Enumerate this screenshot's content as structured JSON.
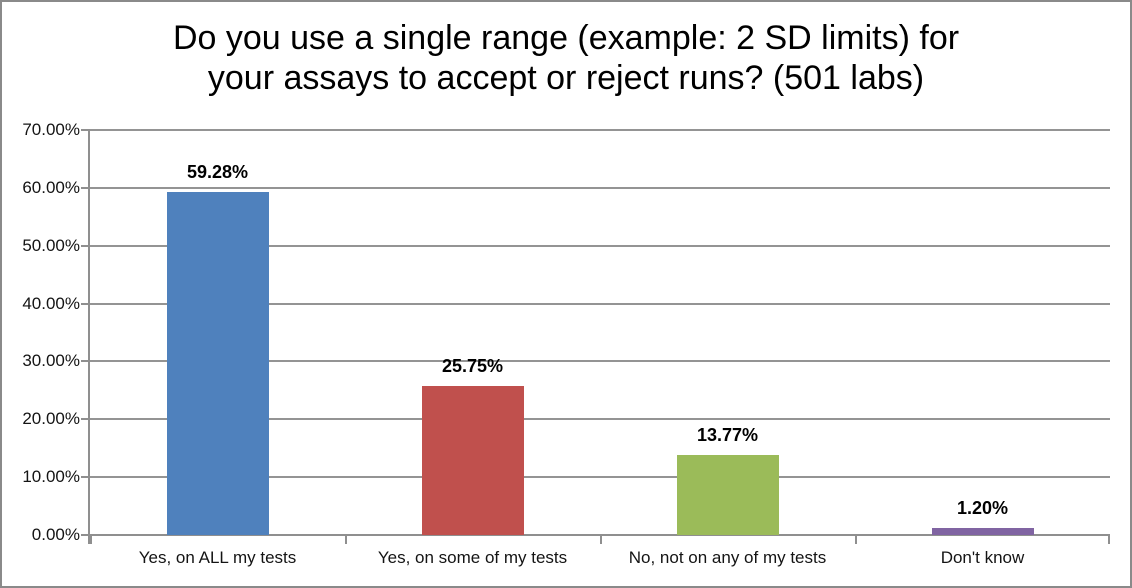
{
  "chart_data": {
    "type": "bar",
    "title": "Do you use a single range (example: 2 SD limits) for your assays to accept or reject runs? (501 labs)",
    "title_lines": [
      "Do you use a single range (example: 2 SD limits) for",
      "your assays to accept or reject runs? (501 labs)"
    ],
    "categories": [
      "Yes, on ALL my tests",
      "Yes, on some of my tests",
      "No, not on any of my tests",
      "Don't know"
    ],
    "values": [
      59.28,
      25.75,
      13.77,
      1.2
    ],
    "value_labels": [
      "59.28%",
      "25.75%",
      "13.77%",
      "1.20%"
    ],
    "bar_colors": [
      "#4F81BD",
      "#C0504D",
      "#9BBB59",
      "#8064A2"
    ],
    "xlabel": "",
    "ylabel": "",
    "ylim": [
      0,
      70
    ],
    "ytick_step": 10,
    "ytick_labels": [
      "0.00%",
      "10.00%",
      "20.00%",
      "30.00%",
      "40.00%",
      "50.00%",
      "60.00%",
      "70.00%"
    ],
    "grid": true,
    "legend": false,
    "colors": {
      "gridline": "#949494",
      "axis": "#8f8f8f",
      "frame_border": "#8a8a8a",
      "title_text": "#000000",
      "tick_text": "#141414"
    }
  }
}
